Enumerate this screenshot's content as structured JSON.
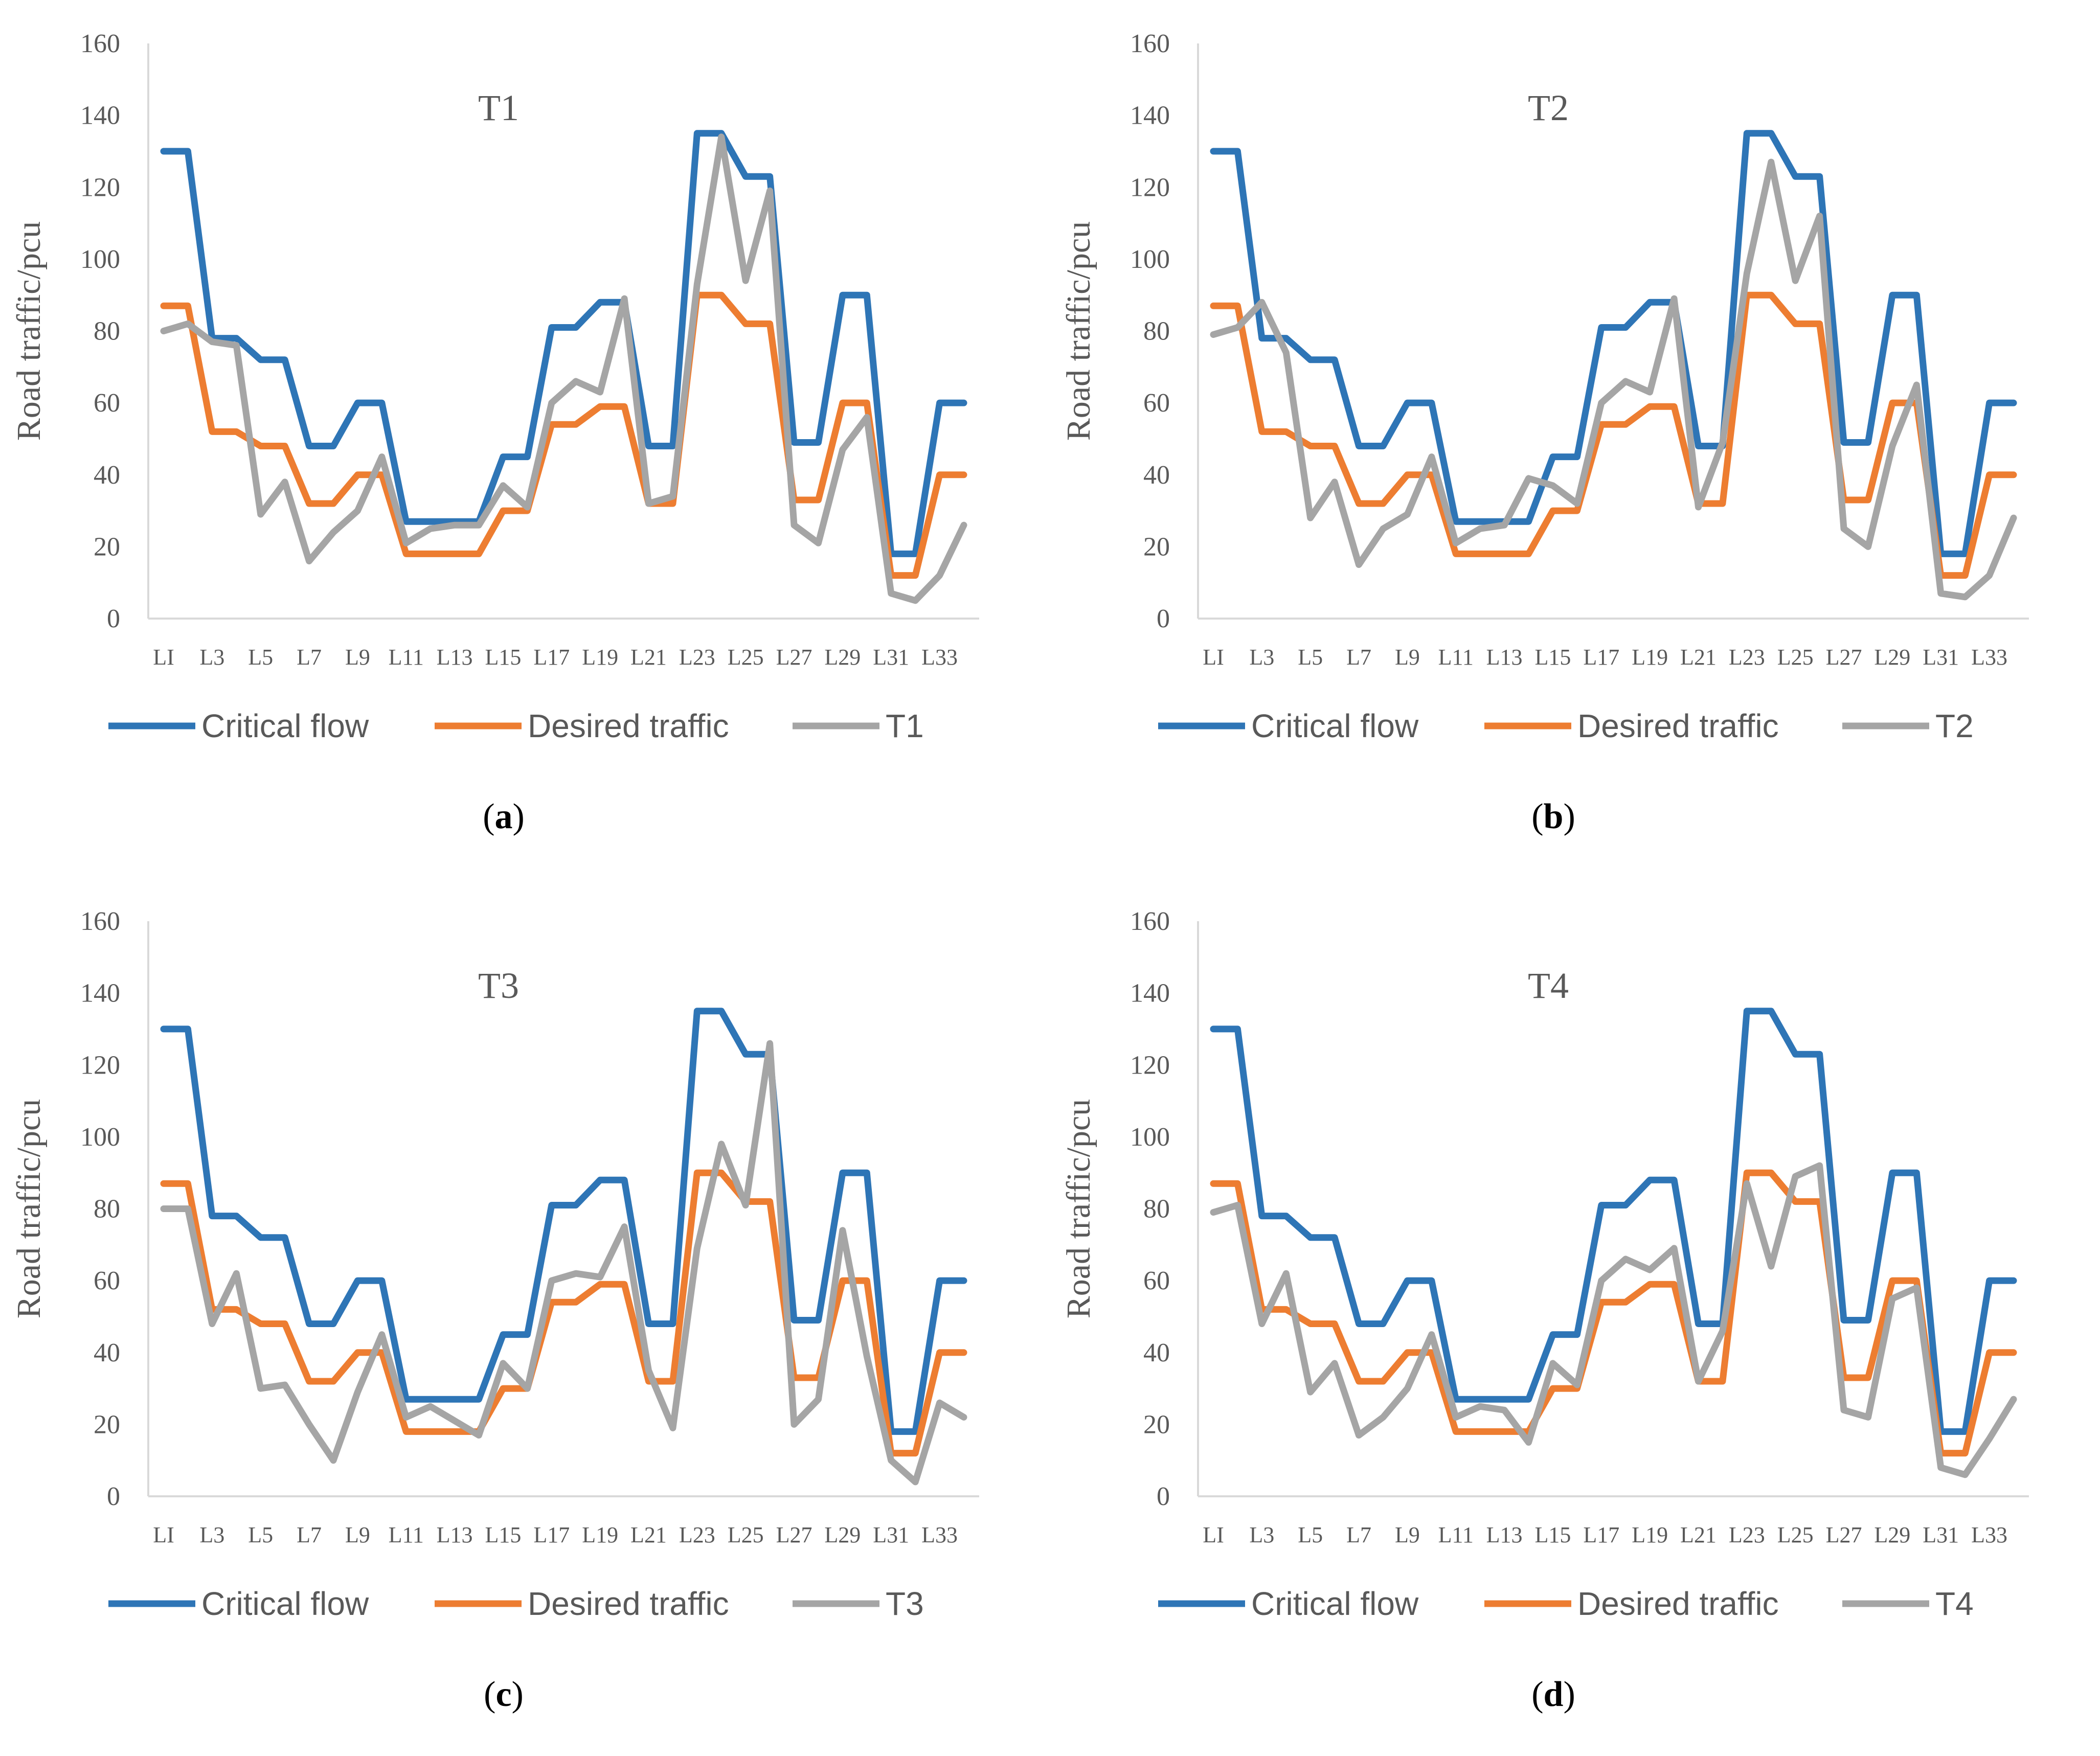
{
  "chart_data": [
    {
      "type": "line",
      "panel_label": "a",
      "title": "T1",
      "xlabel": "",
      "ylabel": "Road traffic/pcu",
      "ylim": [
        0,
        160
      ],
      "yticks": [
        0,
        20,
        40,
        60,
        80,
        100,
        120,
        140,
        160
      ],
      "x_tick_labels": [
        "LI",
        "L3",
        "L5",
        "L7",
        "L9",
        "L11",
        "L13",
        "L15",
        "L17",
        "L19",
        "L21",
        "L23",
        "L25",
        "L27",
        "L29",
        "L31",
        "L33"
      ],
      "legend_position": "bottom",
      "grid": false,
      "series": [
        {
          "name": "Critical flow",
          "color": "#2E75B6",
          "values": [
            130,
            130,
            78,
            78,
            72,
            72,
            48,
            48,
            60,
            60,
            27,
            27,
            27,
            27,
            45,
            45,
            81,
            81,
            88,
            88,
            48,
            48,
            135,
            135,
            123,
            123,
            49,
            49,
            90,
            90,
            18,
            18,
            60,
            60
          ]
        },
        {
          "name": "Desired traffic",
          "color": "#ED7D31",
          "values": [
            87,
            87,
            52,
            52,
            48,
            48,
            32,
            32,
            40,
            40,
            18,
            18,
            18,
            18,
            30,
            30,
            54,
            54,
            59,
            59,
            32,
            32,
            90,
            90,
            82,
            82,
            33,
            33,
            60,
            60,
            12,
            12,
            40,
            40
          ]
        },
        {
          "name": "T1",
          "color": "#A5A5A5",
          "values": [
            80,
            82,
            77,
            76,
            29,
            38,
            16,
            24,
            30,
            45,
            21,
            25,
            26,
            26,
            37,
            31,
            60,
            66,
            63,
            89,
            32,
            34,
            93,
            134,
            94,
            119,
            26,
            21,
            47,
            56,
            7,
            5,
            12,
            26
          ]
        }
      ]
    },
    {
      "type": "line",
      "panel_label": "b",
      "title": "T2",
      "xlabel": "",
      "ylabel": "Road traffic/pcu",
      "ylim": [
        0,
        160
      ],
      "yticks": [
        0,
        20,
        40,
        60,
        80,
        100,
        120,
        140,
        160
      ],
      "x_tick_labels": [
        "LI",
        "L3",
        "L5",
        "L7",
        "L9",
        "L11",
        "L13",
        "L15",
        "L17",
        "L19",
        "L21",
        "L23",
        "L25",
        "L27",
        "L29",
        "L31",
        "L33"
      ],
      "legend_position": "bottom",
      "grid": false,
      "series": [
        {
          "name": "Critical flow",
          "color": "#2E75B6",
          "values": [
            130,
            130,
            78,
            78,
            72,
            72,
            48,
            48,
            60,
            60,
            27,
            27,
            27,
            27,
            45,
            45,
            81,
            81,
            88,
            88,
            48,
            48,
            135,
            135,
            123,
            123,
            49,
            49,
            90,
            90,
            18,
            18,
            60,
            60
          ]
        },
        {
          "name": "Desired traffic",
          "color": "#ED7D31",
          "values": [
            87,
            87,
            52,
            52,
            48,
            48,
            32,
            32,
            40,
            40,
            18,
            18,
            18,
            18,
            30,
            30,
            54,
            54,
            59,
            59,
            32,
            32,
            90,
            90,
            82,
            82,
            33,
            33,
            60,
            60,
            12,
            12,
            40,
            40
          ]
        },
        {
          "name": "T2",
          "color": "#A5A5A5",
          "values": [
            79,
            81,
            88,
            74,
            28,
            38,
            15,
            25,
            29,
            45,
            21,
            25,
            26,
            39,
            37,
            32,
            60,
            66,
            63,
            89,
            31,
            49,
            96,
            127,
            94,
            112,
            25,
            20,
            48,
            65,
            7,
            6,
            12,
            28
          ]
        }
      ]
    },
    {
      "type": "line",
      "panel_label": "c",
      "title": "T3",
      "xlabel": "",
      "ylabel": "Road traffic/pcu",
      "ylim": [
        0,
        160
      ],
      "yticks": [
        0,
        20,
        40,
        60,
        80,
        100,
        120,
        140,
        160
      ],
      "x_tick_labels": [
        "LI",
        "L3",
        "L5",
        "L7",
        "L9",
        "L11",
        "L13",
        "L15",
        "L17",
        "L19",
        "L21",
        "L23",
        "L25",
        "L27",
        "L29",
        "L31",
        "L33"
      ],
      "legend_position": "bottom",
      "grid": false,
      "series": [
        {
          "name": "Critical flow",
          "color": "#2E75B6",
          "values": [
            130,
            130,
            78,
            78,
            72,
            72,
            48,
            48,
            60,
            60,
            27,
            27,
            27,
            27,
            45,
            45,
            81,
            81,
            88,
            88,
            48,
            48,
            135,
            135,
            123,
            123,
            49,
            49,
            90,
            90,
            18,
            18,
            60,
            60
          ]
        },
        {
          "name": "Desired traffic",
          "color": "#ED7D31",
          "values": [
            87,
            87,
            52,
            52,
            48,
            48,
            32,
            32,
            40,
            40,
            18,
            18,
            18,
            18,
            30,
            30,
            54,
            54,
            59,
            59,
            32,
            32,
            90,
            90,
            82,
            82,
            33,
            33,
            60,
            60,
            12,
            12,
            40,
            40
          ]
        },
        {
          "name": "T3",
          "color": "#A5A5A5",
          "values": [
            80,
            80,
            48,
            62,
            30,
            31,
            20,
            10,
            29,
            45,
            22,
            25,
            21,
            17,
            37,
            30,
            60,
            62,
            61,
            75,
            35,
            19,
            69,
            98,
            81,
            126,
            20,
            27,
            74,
            39,
            10,
            4,
            26,
            22
          ]
        }
      ]
    },
    {
      "type": "line",
      "panel_label": "d",
      "title": "T4",
      "xlabel": "",
      "ylabel": "Road traffic/pcu",
      "ylim": [
        0,
        160
      ],
      "yticks": [
        0,
        20,
        40,
        60,
        80,
        100,
        120,
        140,
        160
      ],
      "x_tick_labels": [
        "LI",
        "L3",
        "L5",
        "L7",
        "L9",
        "L11",
        "L13",
        "L15",
        "L17",
        "L19",
        "L21",
        "L23",
        "L25",
        "L27",
        "L29",
        "L31",
        "L33"
      ],
      "legend_position": "bottom",
      "grid": false,
      "series": [
        {
          "name": "Critical flow",
          "color": "#2E75B6",
          "values": [
            130,
            130,
            78,
            78,
            72,
            72,
            48,
            48,
            60,
            60,
            27,
            27,
            27,
            27,
            45,
            45,
            81,
            81,
            88,
            88,
            48,
            48,
            135,
            135,
            123,
            123,
            49,
            49,
            90,
            90,
            18,
            18,
            60,
            60
          ]
        },
        {
          "name": "Desired traffic",
          "color": "#ED7D31",
          "values": [
            87,
            87,
            52,
            52,
            48,
            48,
            32,
            32,
            40,
            40,
            18,
            18,
            18,
            18,
            30,
            30,
            54,
            54,
            59,
            59,
            32,
            32,
            90,
            90,
            82,
            82,
            33,
            33,
            60,
            60,
            12,
            12,
            40,
            40
          ]
        },
        {
          "name": "T4",
          "color": "#A5A5A5",
          "values": [
            79,
            81,
            48,
            62,
            29,
            37,
            17,
            22,
            30,
            45,
            22,
            25,
            24,
            15,
            37,
            31,
            60,
            66,
            63,
            69,
            32,
            46,
            87,
            64,
            89,
            92,
            24,
            22,
            55,
            58,
            8,
            6,
            16,
            27
          ]
        }
      ]
    }
  ]
}
